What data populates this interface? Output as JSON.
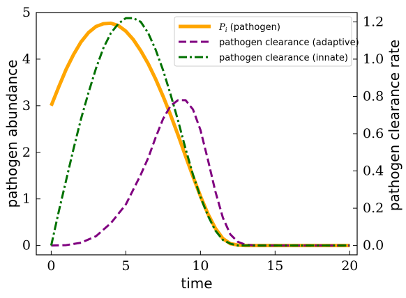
{
  "chart_data": {
    "type": "line",
    "xlabel": "time",
    "ylabel_left": "pathogen abundance",
    "ylabel_right": "pathogen clearance rate",
    "xlim": [
      -1,
      20.5
    ],
    "ylim_left": [
      -0.2,
      5.0
    ],
    "ylim_right": [
      -0.05,
      1.25
    ],
    "x_ticks": [
      0,
      5,
      10,
      15,
      20
    ],
    "y_left_ticks": [
      0,
      1,
      2,
      3,
      4,
      5
    ],
    "y_right_ticks": [
      "0.0",
      "0.2",
      "0.4",
      "0.6",
      "0.8",
      "1.0",
      "1.2"
    ],
    "grid": false,
    "legend_position": "top-right",
    "series": [
      {
        "name": "P_i (pathogen)",
        "legend_symbol": "P",
        "legend_subscript": "i",
        "legend_rest": " (pathogen)",
        "axis": "left",
        "color": "#FFA500",
        "dash": "solid",
        "x": [
          0,
          0.5,
          1,
          1.5,
          2,
          2.5,
          3,
          3.5,
          4,
          4.5,
          5,
          5.5,
          6,
          6.5,
          7,
          7.5,
          8,
          8.5,
          9,
          9.5,
          10,
          10.5,
          11,
          11.5,
          12,
          12.5,
          13,
          14,
          15,
          16,
          17,
          18,
          19,
          20
        ],
        "values": [
          3.0,
          3.4,
          3.78,
          4.1,
          4.37,
          4.57,
          4.7,
          4.76,
          4.77,
          4.72,
          4.6,
          4.42,
          4.18,
          3.9,
          3.57,
          3.2,
          2.8,
          2.37,
          1.92,
          1.48,
          1.06,
          0.68,
          0.37,
          0.15,
          0.04,
          0.01,
          0.0,
          0.0,
          0.0,
          0.0,
          0.0,
          0.0,
          0.0,
          0.0
        ]
      },
      {
        "name": "pathogen clearance (adaptive)",
        "axis": "right",
        "color": "#800080",
        "dash": "dashed",
        "x": [
          0,
          1,
          2,
          3,
          4,
          5,
          5.5,
          6,
          6.5,
          7,
          7.5,
          8,
          8.5,
          9,
          9.5,
          10,
          10.5,
          11,
          11.5,
          12,
          12.5,
          13,
          13.5,
          14,
          15,
          16,
          17,
          18,
          19,
          20
        ],
        "values": [
          0.0,
          0.002,
          0.015,
          0.05,
          0.12,
          0.22,
          0.3,
          0.38,
          0.47,
          0.58,
          0.68,
          0.75,
          0.78,
          0.78,
          0.73,
          0.62,
          0.46,
          0.29,
          0.15,
          0.06,
          0.02,
          0.005,
          0.001,
          0.0,
          0.0,
          0.0,
          0.0,
          0.0,
          0.0,
          0.0
        ]
      },
      {
        "name": "pathogen clearance (innate)",
        "axis": "right",
        "color": "#007100",
        "dash": "dashdot",
        "x": [
          0,
          0.5,
          1,
          1.5,
          2,
          2.5,
          3,
          3.5,
          4,
          4.5,
          5,
          5.5,
          6,
          6.5,
          7,
          7.5,
          8,
          8.5,
          9,
          9.5,
          10,
          10.5,
          11,
          11.5,
          12,
          12.5,
          13,
          14,
          15,
          16,
          17,
          18,
          19,
          20
        ],
        "values": [
          0.0,
          0.18,
          0.35,
          0.52,
          0.68,
          0.82,
          0.95,
          1.06,
          1.14,
          1.19,
          1.22,
          1.22,
          1.2,
          1.14,
          1.05,
          0.94,
          0.81,
          0.67,
          0.52,
          0.38,
          0.26,
          0.16,
          0.08,
          0.03,
          0.01,
          0.0,
          0.0,
          0.0,
          0.0,
          0.0,
          0.0,
          0.0,
          0.0,
          0.0
        ]
      }
    ]
  }
}
